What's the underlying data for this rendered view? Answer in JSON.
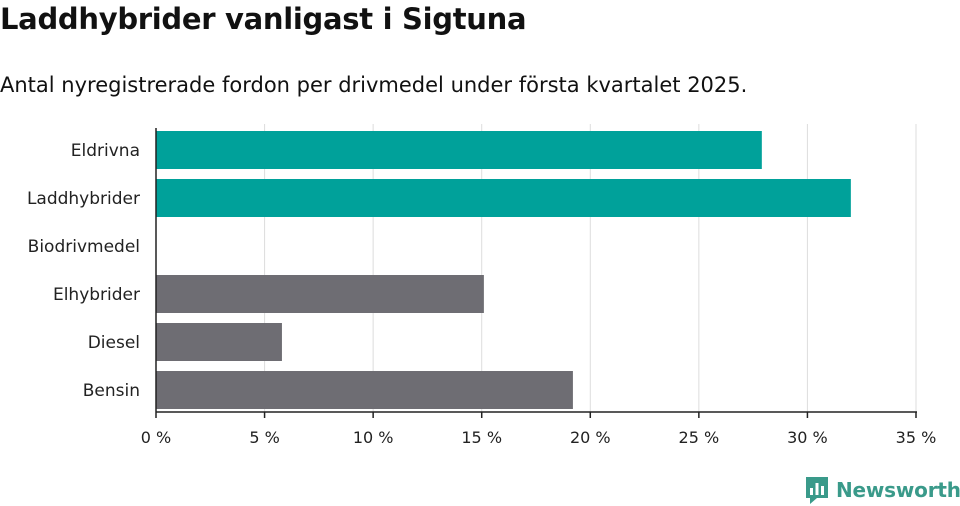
{
  "title": "Laddhybrider vanligast i Sigtuna",
  "subtitle": "Antal nyregistrerade fordon per drivmedel under första kvartalet 2025.",
  "brand": {
    "name": "Newsworthy",
    "color": "#3a9a8a",
    "icon": "bar-chart-logo-icon"
  },
  "colors": {
    "highlight": "#00a19a",
    "other": "#6e6d73",
    "grid": "#dddddd",
    "axis": "#222222"
  },
  "chart_data": {
    "type": "bar",
    "orientation": "horizontal",
    "categories": [
      "Eldrivna",
      "Laddhybrider",
      "Biodrivmedel",
      "Elhybrider",
      "Diesel",
      "Bensin"
    ],
    "values": [
      27.9,
      32.0,
      0,
      15.1,
      5.8,
      19.2
    ],
    "highlighted": [
      true,
      true,
      false,
      false,
      false,
      false
    ],
    "unit": "%",
    "xlim": [
      0,
      35
    ],
    "ticks": [
      0,
      5,
      10,
      15,
      20,
      25,
      30,
      35
    ],
    "tick_labels": [
      "0 %",
      "5 %",
      "10 %",
      "15 %",
      "20 %",
      "25 %",
      "30 %",
      "35 %"
    ],
    "grid": true
  }
}
